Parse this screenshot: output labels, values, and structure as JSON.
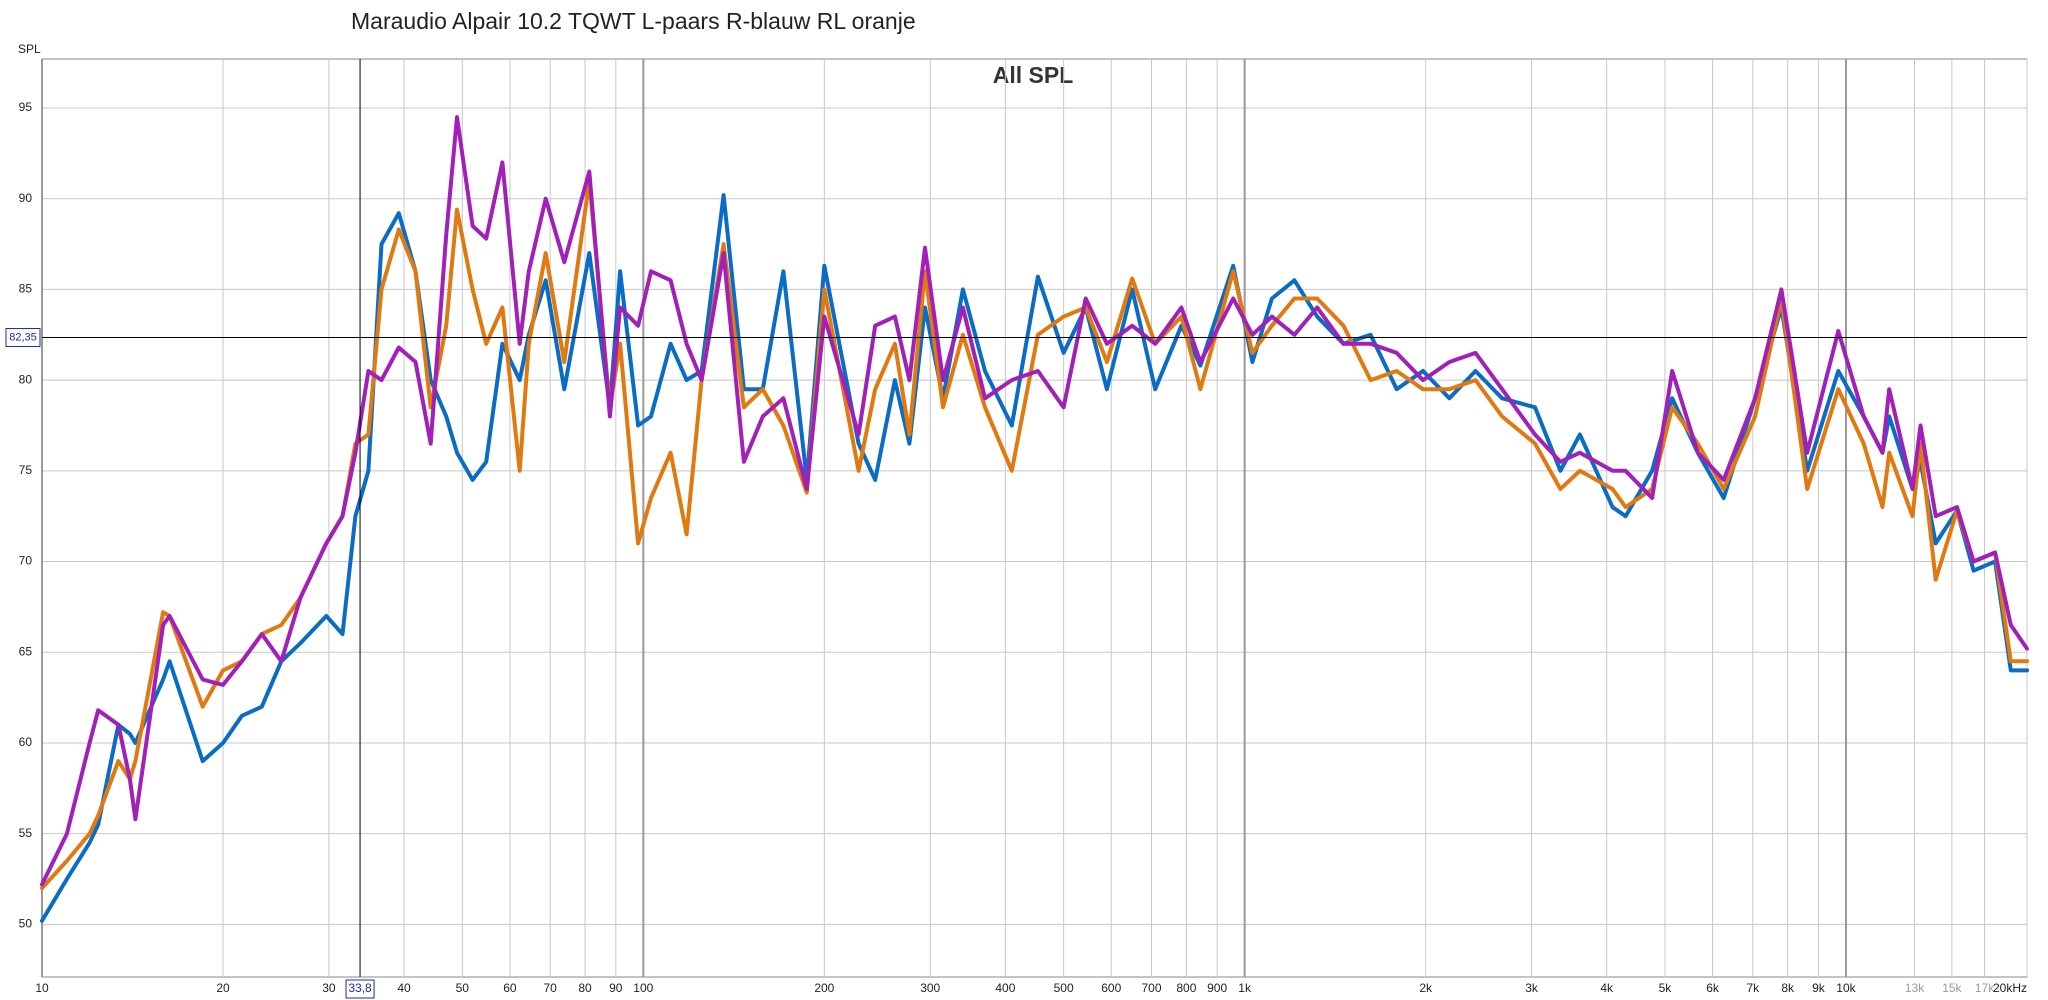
{
  "chart_data": {
    "type": "line",
    "title": "Maraudio Alpair 10.2 TQWT L-paars R-blauw RL oranje",
    "subtitle": "All SPL",
    "y_label": "SPL",
    "x_scale": "log",
    "grid": true,
    "xlim": [
      10,
      20000
    ],
    "ylim": [
      47.1,
      97.7
    ],
    "yticks": [
      50,
      55,
      60,
      65,
      70,
      75,
      80,
      85,
      90,
      95
    ],
    "xticks": [
      10,
      20,
      30,
      40,
      50,
      60,
      70,
      80,
      90,
      100,
      200,
      300,
      400,
      500,
      600,
      700,
      800,
      900,
      {
        "value": 1000,
        "label": "1k"
      },
      {
        "value": 2000,
        "label": "2k"
      },
      {
        "value": 3000,
        "label": "3k"
      },
      {
        "value": 4000,
        "label": "4k"
      },
      {
        "value": 5000,
        "label": "5k"
      },
      {
        "value": 6000,
        "label": "6k"
      },
      {
        "value": 7000,
        "label": "7k"
      },
      {
        "value": 8000,
        "label": "8k"
      },
      {
        "value": 9000,
        "label": "9k"
      },
      {
        "value": 10000,
        "label": "10k"
      },
      {
        "value": 13000,
        "label": "13k"
      },
      {
        "value": 15000,
        "label": "15k"
      },
      {
        "value": 17000,
        "label": "17k"
      },
      {
        "value": 20000,
        "label": "20kHz"
      }
    ],
    "cursor_x": {
      "value": 33.8,
      "label": "33,8"
    },
    "cursor_y": {
      "value": 82.35,
      "label": "82,35"
    },
    "x": [
      10,
      11,
      12,
      12.4,
      13.4,
      14,
      14.3,
      15.9,
      16.3,
      18.5,
      20,
      21.5,
      23.2,
      25,
      26.9,
      29.7,
      31.6,
      33.2,
      34.9,
      36.7,
      39.2,
      41.8,
      44.3,
      47,
      49,
      52,
      54.8,
      58.3,
      62.3,
      64.5,
      68.8,
      73.9,
      81.3,
      88,
      91.5,
      98,
      103,
      111,
      118,
      125,
      136,
      147,
      158,
      171,
      187,
      200,
      228,
      243,
      262,
      277,
      294,
      315,
      340,
      370,
      410,
      453,
      500,
      544,
      590,
      650,
      710,
      785,
      844,
      957,
      1030,
      1110,
      1210,
      1320,
      1460,
      1620,
      1790,
      1980,
      2190,
      2420,
      2680,
      3040,
      3350,
      3610,
      4090,
      4300,
      4760,
      5140,
      5670,
      6260,
      7060,
      7810,
      8620,
      9710,
      10700,
      11500,
      11800,
      12900,
      13300,
      14100,
      15300,
      16300,
      17700,
      18800,
      20000
    ],
    "series": [
      {
        "color": "#0a6cc4",
        "values": [
          50.2,
          52.5,
          54.5,
          55.5,
          61,
          60.5,
          60,
          63.5,
          64.5,
          59,
          60,
          61.5,
          62,
          64.5,
          65.5,
          67,
          66,
          72.5,
          75,
          87.5,
          89.2,
          86,
          80,
          78,
          76,
          74.5,
          75.5,
          82,
          80,
          82.5,
          85.5,
          79.5,
          87,
          78.5,
          86,
          77.5,
          78,
          82,
          80,
          80.5,
          90.2,
          79.5,
          79.5,
          86,
          74.5,
          86.3,
          76.5,
          74.5,
          80,
          76.5,
          84,
          79,
          85,
          80.5,
          77.5,
          85.7,
          81.5,
          84,
          79.5,
          85,
          79.5,
          83,
          80.8,
          86.3,
          81,
          84.5,
          85.5,
          83.5,
          82,
          82.5,
          79.5,
          80.5,
          79,
          80.5,
          79,
          78.5,
          75,
          77,
          73,
          72.5,
          75,
          79,
          76,
          73.5,
          79,
          84,
          75,
          80.5,
          78,
          76,
          78,
          74,
          75.5,
          71,
          72.8,
          69.5,
          70,
          64,
          64
        ]
      },
      {
        "color": "#e07a10",
        "values": [
          52,
          53.5,
          55,
          56,
          59,
          58,
          59,
          67.2,
          67,
          62,
          64,
          64.5,
          66,
          66.5,
          68,
          71,
          72.5,
          76.5,
          77,
          85,
          88.3,
          86,
          78.5,
          83,
          89.4,
          85,
          82,
          84,
          75,
          82,
          87,
          81,
          91,
          78.5,
          82,
          71,
          73.5,
          76,
          71.5,
          80,
          87.5,
          78.5,
          79.5,
          77.5,
          73.8,
          85,
          75,
          79.5,
          82,
          77,
          86,
          78.5,
          82.5,
          78.5,
          75,
          82.5,
          83.5,
          84,
          81,
          85.6,
          82,
          83.5,
          79.5,
          86,
          81.5,
          83,
          84.5,
          84.5,
          83,
          80,
          80.5,
          79.5,
          79.5,
          80,
          78,
          76.5,
          74,
          75,
          74,
          73,
          74,
          78.5,
          76.5,
          74,
          78,
          84.5,
          74,
          79.5,
          76.5,
          73,
          76,
          72.5,
          76.5,
          69,
          72.8,
          70,
          70.5,
          64.5,
          64.5
        ]
      },
      {
        "color": "#a020b8",
        "values": [
          52.2,
          55,
          60,
          61.8,
          61,
          58,
          55.8,
          66.5,
          67,
          63.5,
          63.2,
          64.5,
          66,
          64.5,
          68,
          71,
          72.5,
          76,
          80.5,
          80,
          81.8,
          81,
          76.5,
          88,
          94.5,
          88.5,
          87.8,
          92,
          82,
          86,
          90,
          86.5,
          91.5,
          78,
          84,
          83,
          86,
          85.5,
          82,
          80,
          87,
          75.5,
          78,
          79,
          74,
          83.5,
          77,
          83,
          83.5,
          80,
          87.3,
          80,
          84,
          79,
          80,
          80.5,
          78.5,
          84.5,
          82,
          83,
          82,
          84,
          81,
          84.5,
          82.5,
          83.5,
          82.5,
          84,
          82,
          82,
          81.5,
          80,
          81,
          81.5,
          79.5,
          77,
          75.5,
          76,
          75,
          75,
          73.5,
          80.5,
          76,
          74.5,
          79,
          85,
          76,
          82.7,
          78,
          76,
          79.5,
          74,
          77.5,
          72.5,
          73,
          70,
          70.5,
          66.5,
          65.2
        ]
      }
    ]
  }
}
